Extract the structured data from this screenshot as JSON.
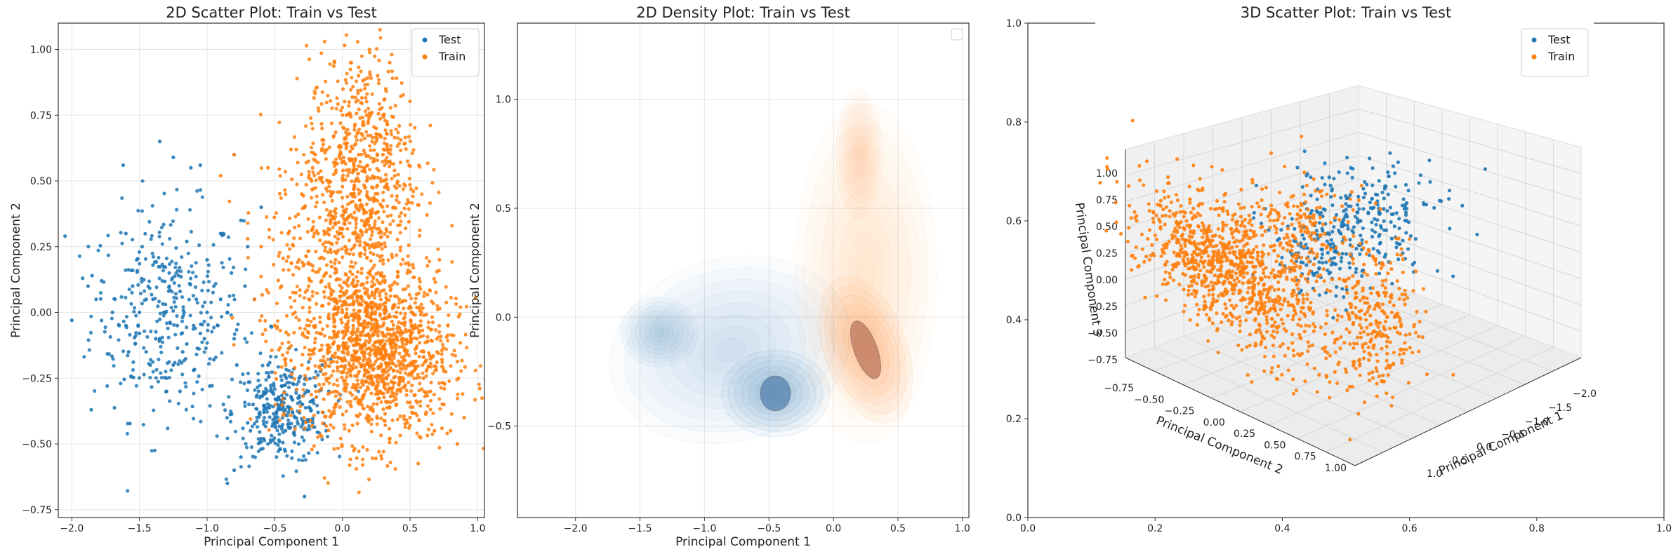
{
  "colors": {
    "test": "#1f77b4",
    "train": "#ff7f0e"
  },
  "chart_data": [
    {
      "type": "scatter",
      "title": "2D Scatter Plot: Train vs Test",
      "xlabel": "Principal Component 1",
      "ylabel": "Principal Component 2",
      "xlim": [
        -2.1,
        1.05
      ],
      "ylim": [
        -0.78,
        1.1
      ],
      "xticks": [
        -2.0,
        -1.5,
        -1.0,
        -0.5,
        0.0,
        0.5,
        1.0
      ],
      "xtick_labels": [
        "−2.0",
        "−1.5",
        "−1.0",
        "−0.5",
        "0.0",
        "0.5",
        "1.0"
      ],
      "yticks": [
        -0.75,
        -0.5,
        -0.25,
        0.0,
        0.25,
        0.5,
        0.75,
        1.0
      ],
      "ytick_labels": [
        "−0.75",
        "−0.50",
        "−0.25",
        "0.00",
        "0.25",
        "0.50",
        "0.75",
        "1.00"
      ],
      "grid": true,
      "legend": {
        "placement": "top-right",
        "entries": [
          "Test",
          "Train"
        ]
      },
      "series": [
        {
          "name": "Test",
          "color": "#1f77b4",
          "points": [
            [
              -2.05,
              0.29
            ],
            [
              -2.0,
              -0.03
            ],
            [
              -1.92,
              0.13
            ],
            [
              -1.88,
              0.1
            ],
            [
              -1.85,
              0.14
            ],
            [
              -1.82,
              0.05
            ],
            [
              -1.78,
              0.12
            ],
            [
              -1.7,
              0.0
            ],
            [
              -1.65,
              -0.05
            ],
            [
              -1.62,
              0.56
            ],
            [
              -1.6,
              0.3
            ],
            [
              -1.58,
              -0.15
            ],
            [
              -1.55,
              0.1
            ],
            [
              -1.52,
              0.2
            ],
            [
              -1.5,
              -0.08
            ],
            [
              -1.48,
              0.25
            ],
            [
              -1.45,
              0.05
            ],
            [
              -1.42,
              -0.2
            ],
            [
              -1.4,
              0.18
            ],
            [
              -1.38,
              -0.1
            ],
            [
              -1.35,
              0.65
            ],
            [
              -1.32,
              0.0
            ],
            [
              -1.3,
              -0.3
            ],
            [
              -1.28,
              0.15
            ],
            [
              -1.25,
              0.59
            ],
            [
              -1.22,
              -0.05
            ],
            [
              -1.2,
              0.08
            ],
            [
              -1.18,
              -0.15
            ],
            [
              -1.15,
              0.27
            ],
            [
              -1.12,
              0.55
            ],
            [
              -1.1,
              -0.22
            ],
            [
              -1.08,
              0.05
            ],
            [
              -1.05,
              0.56
            ],
            [
              -1.02,
              -0.1
            ],
            [
              -1.0,
              0.2
            ],
            [
              -0.98,
              -0.28
            ],
            [
              -0.95,
              0.1
            ],
            [
              -0.92,
              -0.05
            ],
            [
              -0.9,
              0.3
            ],
            [
              -0.88,
              -0.35
            ],
            [
              -0.85,
              0.0
            ],
            [
              -0.82,
              0.15
            ],
            [
              -0.8,
              0.6
            ],
            [
              -0.78,
              -0.2
            ],
            [
              -0.75,
              0.35
            ],
            [
              -0.72,
              -0.1
            ],
            [
              -0.7,
              0.25
            ],
            [
              -0.68,
              -0.45
            ],
            [
              -0.65,
              0.05
            ],
            [
              -0.62,
              -0.3
            ],
            [
              -0.6,
              0.4
            ],
            [
              -0.58,
              -0.38
            ],
            [
              -0.55,
              -0.5
            ],
            [
              -0.52,
              -0.3
            ],
            [
              -0.5,
              -0.42
            ],
            [
              -0.48,
              -0.35
            ],
            [
              -0.45,
              -0.28
            ],
            [
              -0.42,
              -0.45
            ],
            [
              -0.4,
              -0.38
            ],
            [
              -0.38,
              -0.32
            ],
            [
              -0.35,
              -0.4
            ],
            [
              -0.32,
              -0.25
            ],
            [
              -0.3,
              -0.35
            ],
            [
              -0.28,
              -0.7
            ],
            [
              -0.25,
              -0.3
            ],
            [
              -0.22,
              -0.42
            ],
            [
              -0.2,
              -0.28
            ],
            [
              -0.18,
              -0.38
            ],
            [
              -0.15,
              -0.2
            ],
            [
              -0.12,
              -0.45
            ],
            [
              -0.1,
              -0.3
            ],
            [
              -0.7,
              -0.42
            ],
            [
              -0.75,
              -0.55
            ],
            [
              -0.8,
              -0.6
            ],
            [
              -0.85,
              -0.65
            ],
            [
              -0.6,
              -0.48
            ],
            [
              -0.66,
              -0.35
            ],
            [
              -0.46,
              -0.52
            ],
            [
              -0.36,
              -0.46
            ],
            [
              -0.55,
              -0.2
            ],
            [
              -1.35,
              -0.1
            ],
            [
              -1.45,
              -0.15
            ],
            [
              -1.25,
              -0.2
            ],
            [
              -1.15,
              -0.12
            ],
            [
              -1.05,
              -0.08
            ],
            [
              -0.95,
              -0.18
            ],
            [
              -1.6,
              -0.05
            ],
            [
              -1.5,
              0.0
            ],
            [
              -1.4,
              0.05
            ],
            [
              -1.3,
              -0.25
            ],
            [
              -1.2,
              -0.3
            ],
            [
              -1.1,
              -0.05
            ],
            [
              -1.0,
              0.0
            ],
            [
              -0.9,
              0.05
            ],
            [
              -0.8,
              -0.1
            ],
            [
              -0.72,
              0.1
            ]
          ]
        },
        {
          "name": "Train",
          "color": "#ff7f0e",
          "points": [
            [
              -0.9,
              0.52
            ],
            [
              -0.8,
              0.6
            ],
            [
              -0.7,
              0.28
            ],
            [
              -0.65,
              0.05
            ],
            [
              -0.6,
              0.25
            ],
            [
              -0.55,
              0.55
            ],
            [
              -0.5,
              -0.05
            ],
            [
              -0.45,
              0.1
            ],
            [
              -0.42,
              0.45
            ],
            [
              -0.4,
              0.3
            ],
            [
              -0.38,
              0.62
            ],
            [
              -0.35,
              0.0
            ],
            [
              -0.32,
              0.2
            ],
            [
              -0.3,
              -0.2
            ],
            [
              -0.28,
              0.4
            ],
            [
              -0.25,
              0.1
            ],
            [
              -0.22,
              0.55
            ],
            [
              -0.2,
              -0.1
            ],
            [
              -0.18,
              0.3
            ],
            [
              -0.15,
              0.7
            ],
            [
              -0.12,
              0.15
            ],
            [
              -0.1,
              -0.25
            ],
            [
              -0.08,
              0.45
            ],
            [
              -0.05,
              0.05
            ],
            [
              -0.02,
              0.6
            ],
            [
              0.0,
              -0.15
            ],
            [
              0.02,
              0.25
            ],
            [
              0.05,
              0.8
            ],
            [
              0.08,
              -0.05
            ],
            [
              0.1,
              0.35
            ],
            [
              0.12,
              0.9
            ],
            [
              0.15,
              -0.2
            ],
            [
              0.18,
              0.5
            ],
            [
              0.2,
              1.0
            ],
            [
              0.22,
              0.1
            ],
            [
              0.25,
              0.7
            ],
            [
              0.28,
              -0.3
            ],
            [
              0.3,
              0.2
            ],
            [
              0.32,
              0.85
            ],
            [
              0.35,
              -0.1
            ],
            [
              0.38,
              0.4
            ],
            [
              0.4,
              -0.35
            ],
            [
              0.42,
              0.05
            ],
            [
              0.45,
              -0.2
            ],
            [
              0.48,
              0.15
            ],
            [
              0.5,
              -0.4
            ],
            [
              0.55,
              -0.1
            ],
            [
              0.6,
              -0.25
            ],
            [
              0.65,
              -0.3
            ],
            [
              0.7,
              -0.15
            ],
            [
              0.75,
              -0.35
            ],
            [
              0.8,
              -0.45
            ],
            [
              0.85,
              -0.5
            ],
            [
              0.9,
              -0.4
            ],
            [
              0.15,
              -0.58
            ],
            [
              0.05,
              -0.45
            ],
            [
              -0.05,
              -0.35
            ],
            [
              0.1,
              -0.1
            ],
            [
              0.2,
              -0.2
            ],
            [
              0.25,
              0.25
            ],
            [
              0.3,
              0.6
            ],
            [
              0.35,
              0.95
            ],
            [
              0.18,
              0.75
            ],
            [
              0.12,
              0.6
            ],
            [
              0.08,
              0.45
            ],
            [
              0.02,
              0.35
            ],
            [
              -0.05,
              0.2
            ],
            [
              0.22,
              0.0
            ],
            [
              0.28,
              -0.12
            ],
            [
              0.33,
              0.05
            ],
            [
              0.38,
              -0.22
            ],
            [
              0.43,
              -0.3
            ],
            [
              0.52,
              -0.2
            ],
            [
              0.58,
              -0.05
            ],
            [
              0.62,
              -0.38
            ],
            [
              0.68,
              -0.45
            ],
            [
              0.0,
              0.0
            ],
            [
              0.05,
              -0.1
            ],
            [
              0.1,
              0.1
            ],
            [
              0.15,
              -0.05
            ],
            [
              0.2,
              0.15
            ],
            [
              0.25,
              -0.15
            ],
            [
              0.3,
              -0.05
            ],
            [
              0.35,
              0.1
            ],
            [
              0.4,
              0.0
            ],
            [
              0.45,
              -0.1
            ],
            [
              0.5,
              0.02
            ],
            [
              0.26,
              0.9
            ],
            [
              0.3,
              0.75
            ],
            [
              0.22,
              0.65
            ],
            [
              0.16,
              0.55
            ],
            [
              -0.1,
              0.5
            ],
            [
              -0.2,
              0.6
            ],
            [
              -0.3,
              0.45
            ]
          ]
        }
      ]
    },
    {
      "type": "density",
      "title": "2D Density Plot: Train vs Test",
      "xlabel": "Principal Component 1",
      "ylabel": "Principal Component 2",
      "xlim": [
        -2.45,
        1.05
      ],
      "ylim": [
        -0.92,
        1.35
      ],
      "xticks": [
        -2.0,
        -1.5,
        -1.0,
        -0.5,
        0.0,
        0.5,
        1.0
      ],
      "xtick_labels": [
        "−2.0",
        "−1.5",
        "−1.0",
        "−0.5",
        "0.0",
        "0.5",
        "1.0"
      ],
      "yticks": [
        -0.5,
        0.0,
        0.5,
        1.0
      ],
      "ytick_labels": [
        "−0.5",
        "0.0",
        "0.5",
        "1.0"
      ],
      "grid": true,
      "legend": {
        "placement": "top-right",
        "entries": []
      },
      "series": [
        {
          "name": "Test",
          "color": "#1f77b4",
          "peaks": [
            [
              -0.45,
              -0.35
            ],
            [
              -1.35,
              -0.07
            ]
          ]
        },
        {
          "name": "Train",
          "color": "#ff7f0e",
          "peaks": [
            [
              0.25,
              -0.15
            ],
            [
              0.2,
              0.8
            ]
          ]
        }
      ]
    },
    {
      "type": "scatter3d",
      "title": "3D Scatter Plot: Train vs Test",
      "xlabel": "Principal Component 1",
      "ylabel": "Principal Component 2",
      "zlabel": "Principal Component 3",
      "outer_xticks": [
        0.0,
        0.2,
        0.4,
        0.6,
        0.8,
        1.0
      ],
      "outer_xtick_labels": [
        "0.0",
        "0.2",
        "0.4",
        "0.6",
        "0.8",
        "1.0"
      ],
      "outer_yticks": [
        0.0,
        0.2,
        0.4,
        0.6,
        0.8,
        1.0
      ],
      "outer_ytick_labels": [
        "0.0",
        "0.2",
        "0.4",
        "0.6",
        "0.8",
        "1.0"
      ],
      "pc1_tick_labels": [
        "−2.0",
        "−1.5",
        "−1.0",
        "−0.5",
        "0.0",
        "0.5",
        "1.0"
      ],
      "pc2_tick_labels": [
        "−0.75",
        "−0.50",
        "−0.25",
        "0.00",
        "0.25",
        "0.50",
        "0.75",
        "1.00"
      ],
      "pc3_tick_labels": [
        "−0.75",
        "−0.50",
        "−0.25",
        "0.00",
        "0.25",
        "0.50",
        "0.75",
        "1.00"
      ],
      "legend": {
        "placement": "top-right",
        "entries": [
          "Test",
          "Train"
        ]
      },
      "series": [
        {
          "name": "Test",
          "color": "#1f77b4",
          "center": [
            -1.3,
            0.15,
            0.6
          ]
        },
        {
          "name": "Train",
          "color": "#ff7f0e",
          "center": [
            0.2,
            0.3,
            0.1
          ]
        }
      ]
    }
  ]
}
